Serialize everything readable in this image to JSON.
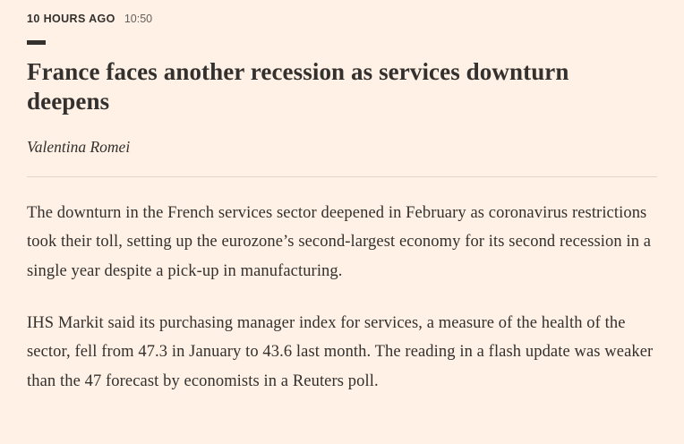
{
  "post": {
    "timestamp_relative": "10 HOURS AGO",
    "timestamp_time": "10:50",
    "headline": "France faces another recession as services downturn deepens",
    "author": "Valentina Romei",
    "paragraphs": [
      "The downturn in the French services sector deepened in February as coronavirus restrictions took their toll, setting up the eurozone’s second-largest economy for its second recession in a single year despite a pick-up in manufacturing.",
      "IHS Markit said its purchasing manager index for services, a measure of the health of the sector, fell from 47.3 in January to 43.6 last month. The reading in a flash update was weaker than the 47 forecast by economists in a Reuters poll."
    ]
  },
  "colors": {
    "background": "#fff1e5",
    "text": "#33302e",
    "muted": "#66605c",
    "divider": "#e5d5c5",
    "accent_bar": "#33302e"
  }
}
